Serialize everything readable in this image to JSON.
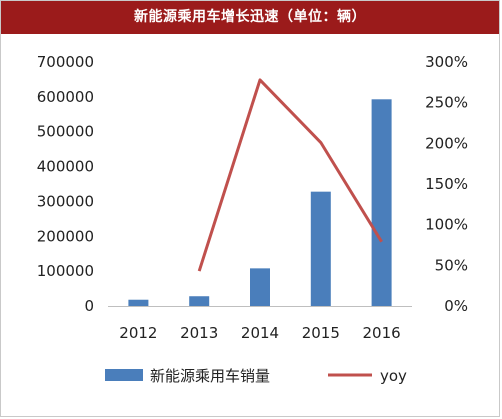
{
  "header": {
    "title": "新能源乘用车增长迅速（单位：辆）"
  },
  "chart_data": {
    "type": "bar",
    "title": "新能源乘用车增长迅速（单位：辆）",
    "categories": [
      "2012",
      "2013",
      "2014",
      "2015",
      "2016"
    ],
    "series": [
      {
        "name": "新能源乘用车销量",
        "type": "bar",
        "axis": "left",
        "color": "#4a7ebb",
        "values": [
          18000,
          28000,
          108000,
          328000,
          593000
        ]
      },
      {
        "name": "yoy",
        "type": "line",
        "axis": "right",
        "color": "#c0504d",
        "values": [
          null,
          0.43,
          2.78,
          2.01,
          0.79
        ]
      }
    ],
    "y_left": {
      "min": 0,
      "max": 700000,
      "ticks": [
        "0",
        "100000",
        "200000",
        "300000",
        "400000",
        "500000",
        "600000",
        "700000"
      ]
    },
    "y_right": {
      "min": 0,
      "max": 3.0,
      "ticks": [
        "0%",
        "50%",
        "100%",
        "150%",
        "200%",
        "250%",
        "300%"
      ]
    },
    "grid": false,
    "legend": "bottom"
  }
}
